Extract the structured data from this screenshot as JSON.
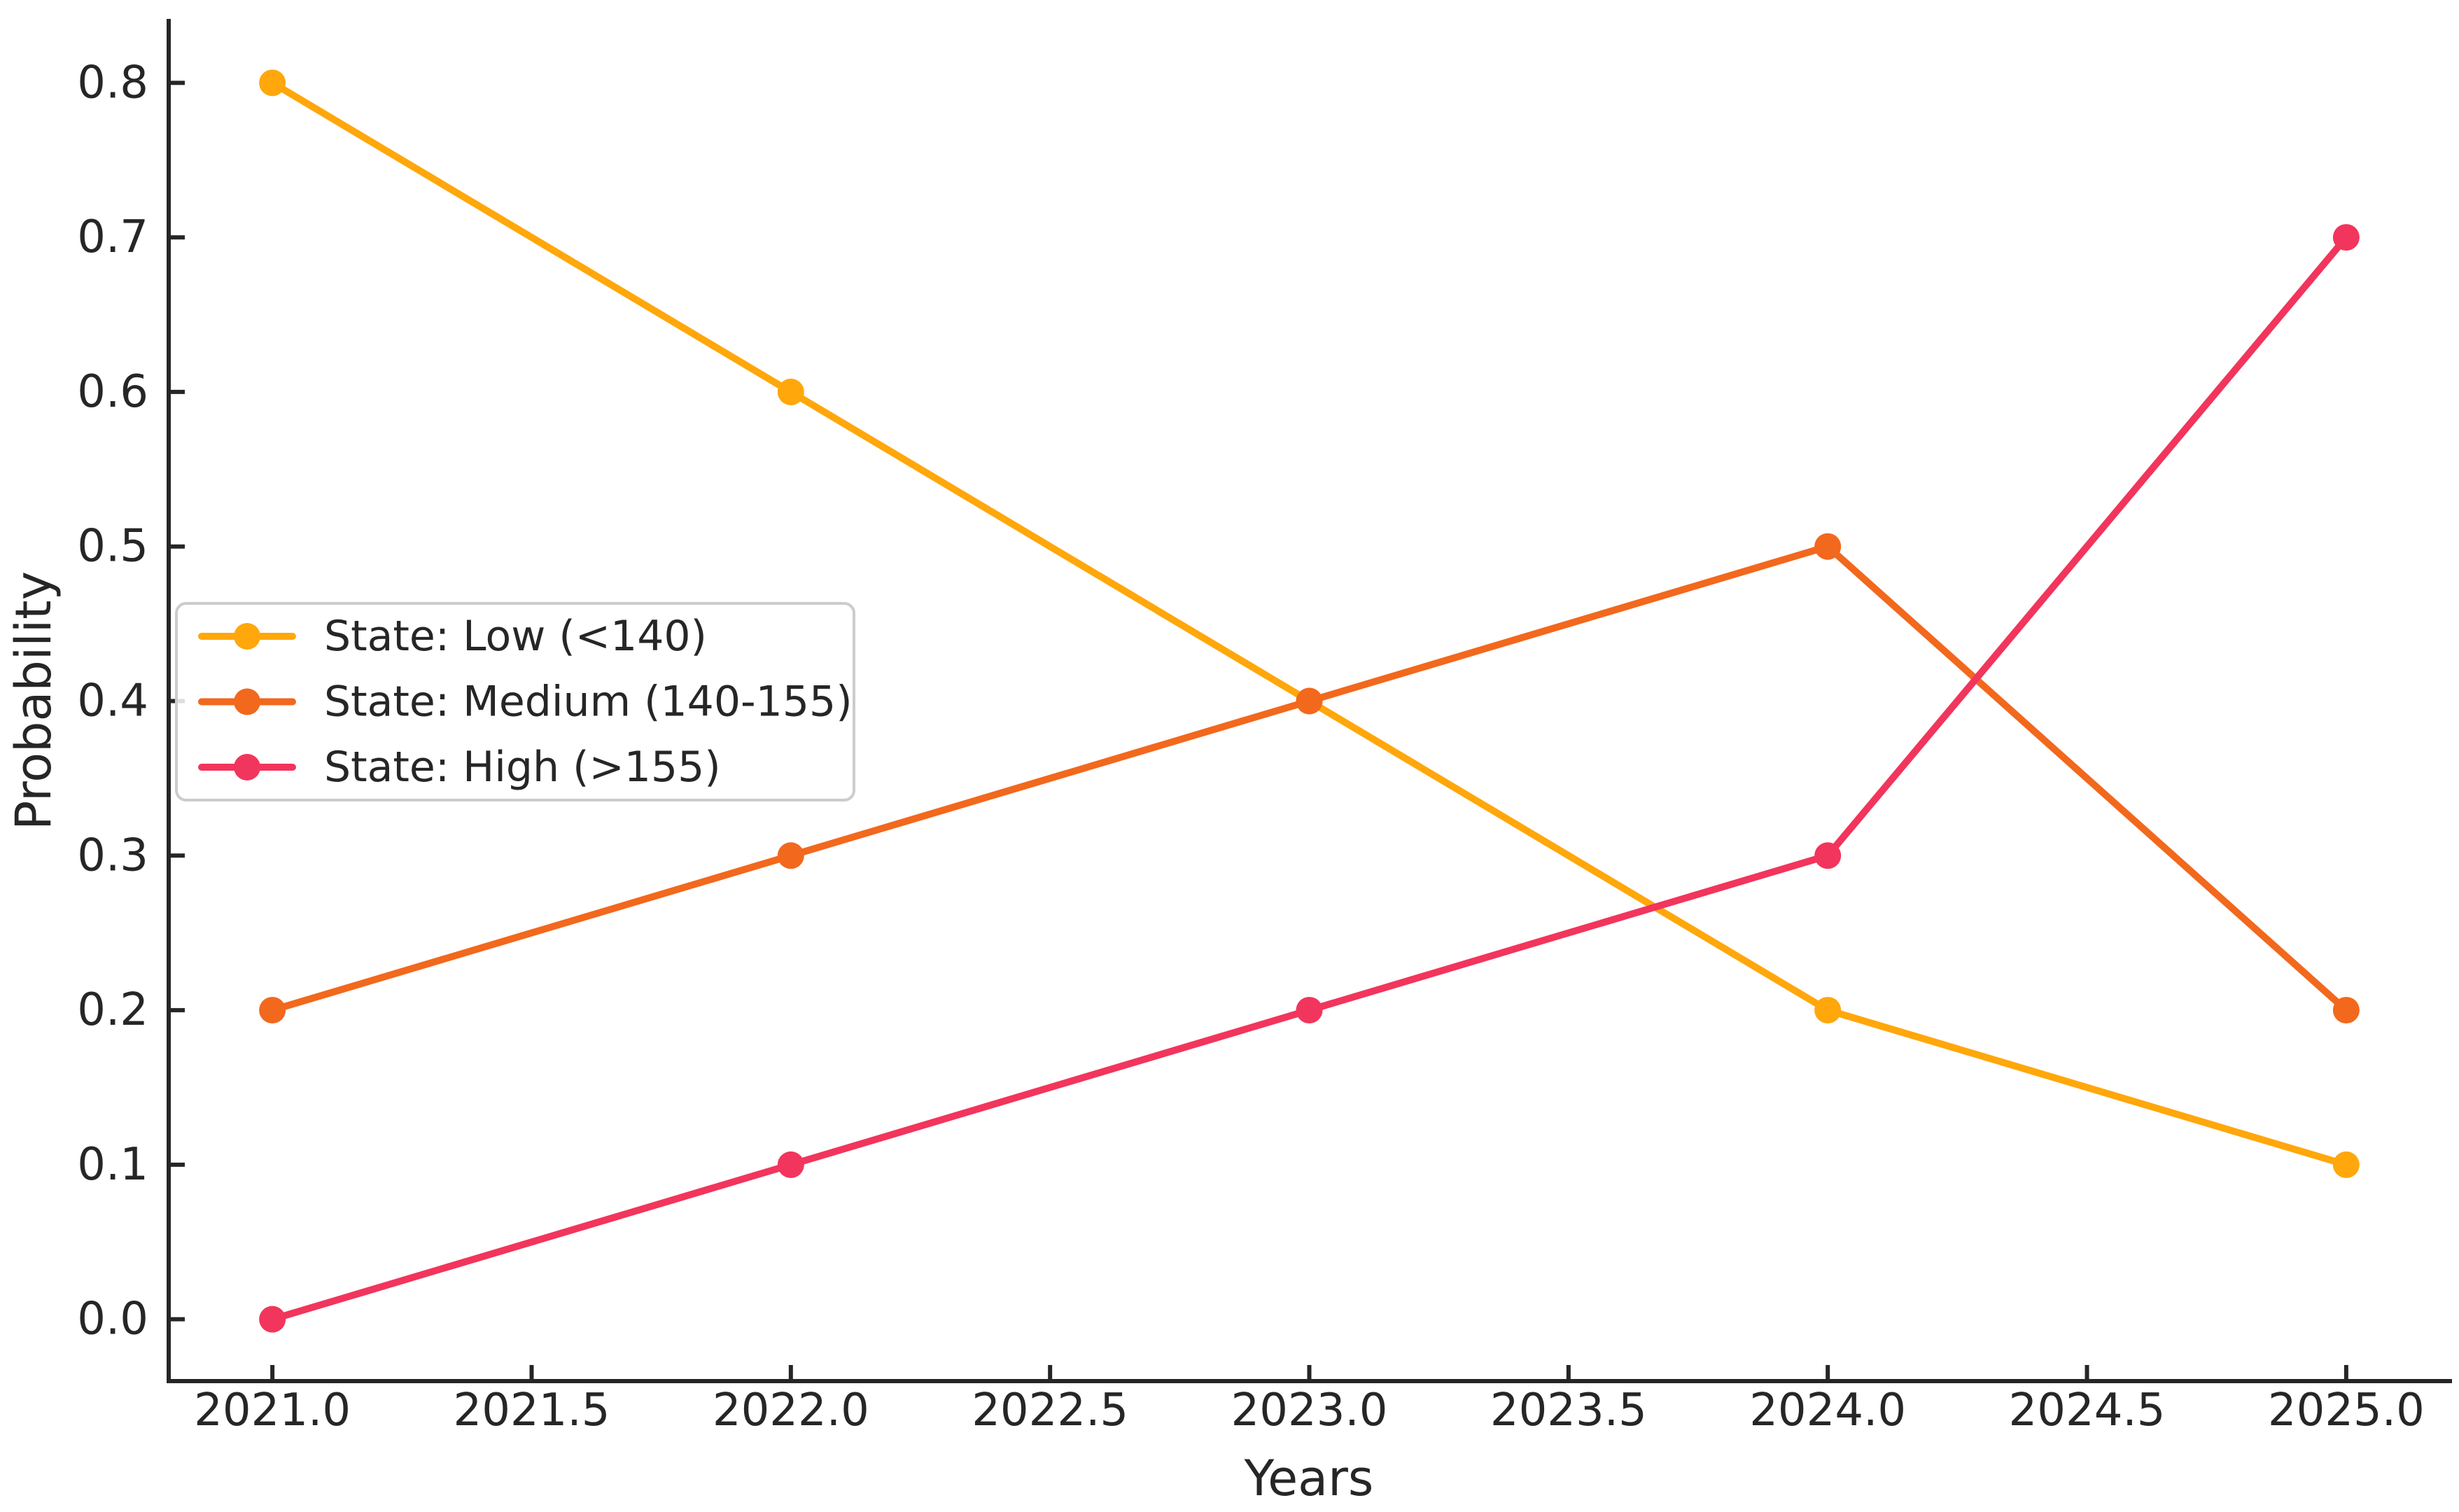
{
  "chart_data": {
    "type": "line",
    "title": "",
    "xlabel": "Years",
    "ylabel": "Probability",
    "x": [
      2021,
      2022,
      2023,
      2024,
      2025
    ],
    "series": [
      {
        "name": "State: Low (<140)",
        "color": "#FFA70B",
        "values": [
          0.8,
          0.6,
          0.4,
          0.2,
          0.1
        ]
      },
      {
        "name": "State: Medium (140-155)",
        "color": "#F2681D",
        "values": [
          0.2,
          0.3,
          0.4,
          0.5,
          0.2
        ]
      },
      {
        "name": "State: High (>155)",
        "color": "#F2355C",
        "values": [
          0.0,
          0.1,
          0.2,
          0.3,
          0.7
        ]
      }
    ],
    "xlim": [
      2020.8,
      2025.2
    ],
    "ylim": [
      -0.04,
      0.84
    ],
    "x_tick_labels": [
      "2021.0",
      "2021.5",
      "2022.0",
      "2022.5",
      "2023.0",
      "2023.5",
      "2024.0",
      "2024.5",
      "2025.0"
    ],
    "y_tick_labels": [
      "0.0",
      "0.1",
      "0.2",
      "0.3",
      "0.4",
      "0.5",
      "0.6",
      "0.7",
      "0.8"
    ],
    "grid": false,
    "legend_position": "center-left",
    "style": {
      "text_color": "#262626",
      "spine_color": "#262626",
      "background": "#ffffff",
      "legend_border": "#cccccc",
      "line_width": 10,
      "marker_radius": 19
    }
  }
}
